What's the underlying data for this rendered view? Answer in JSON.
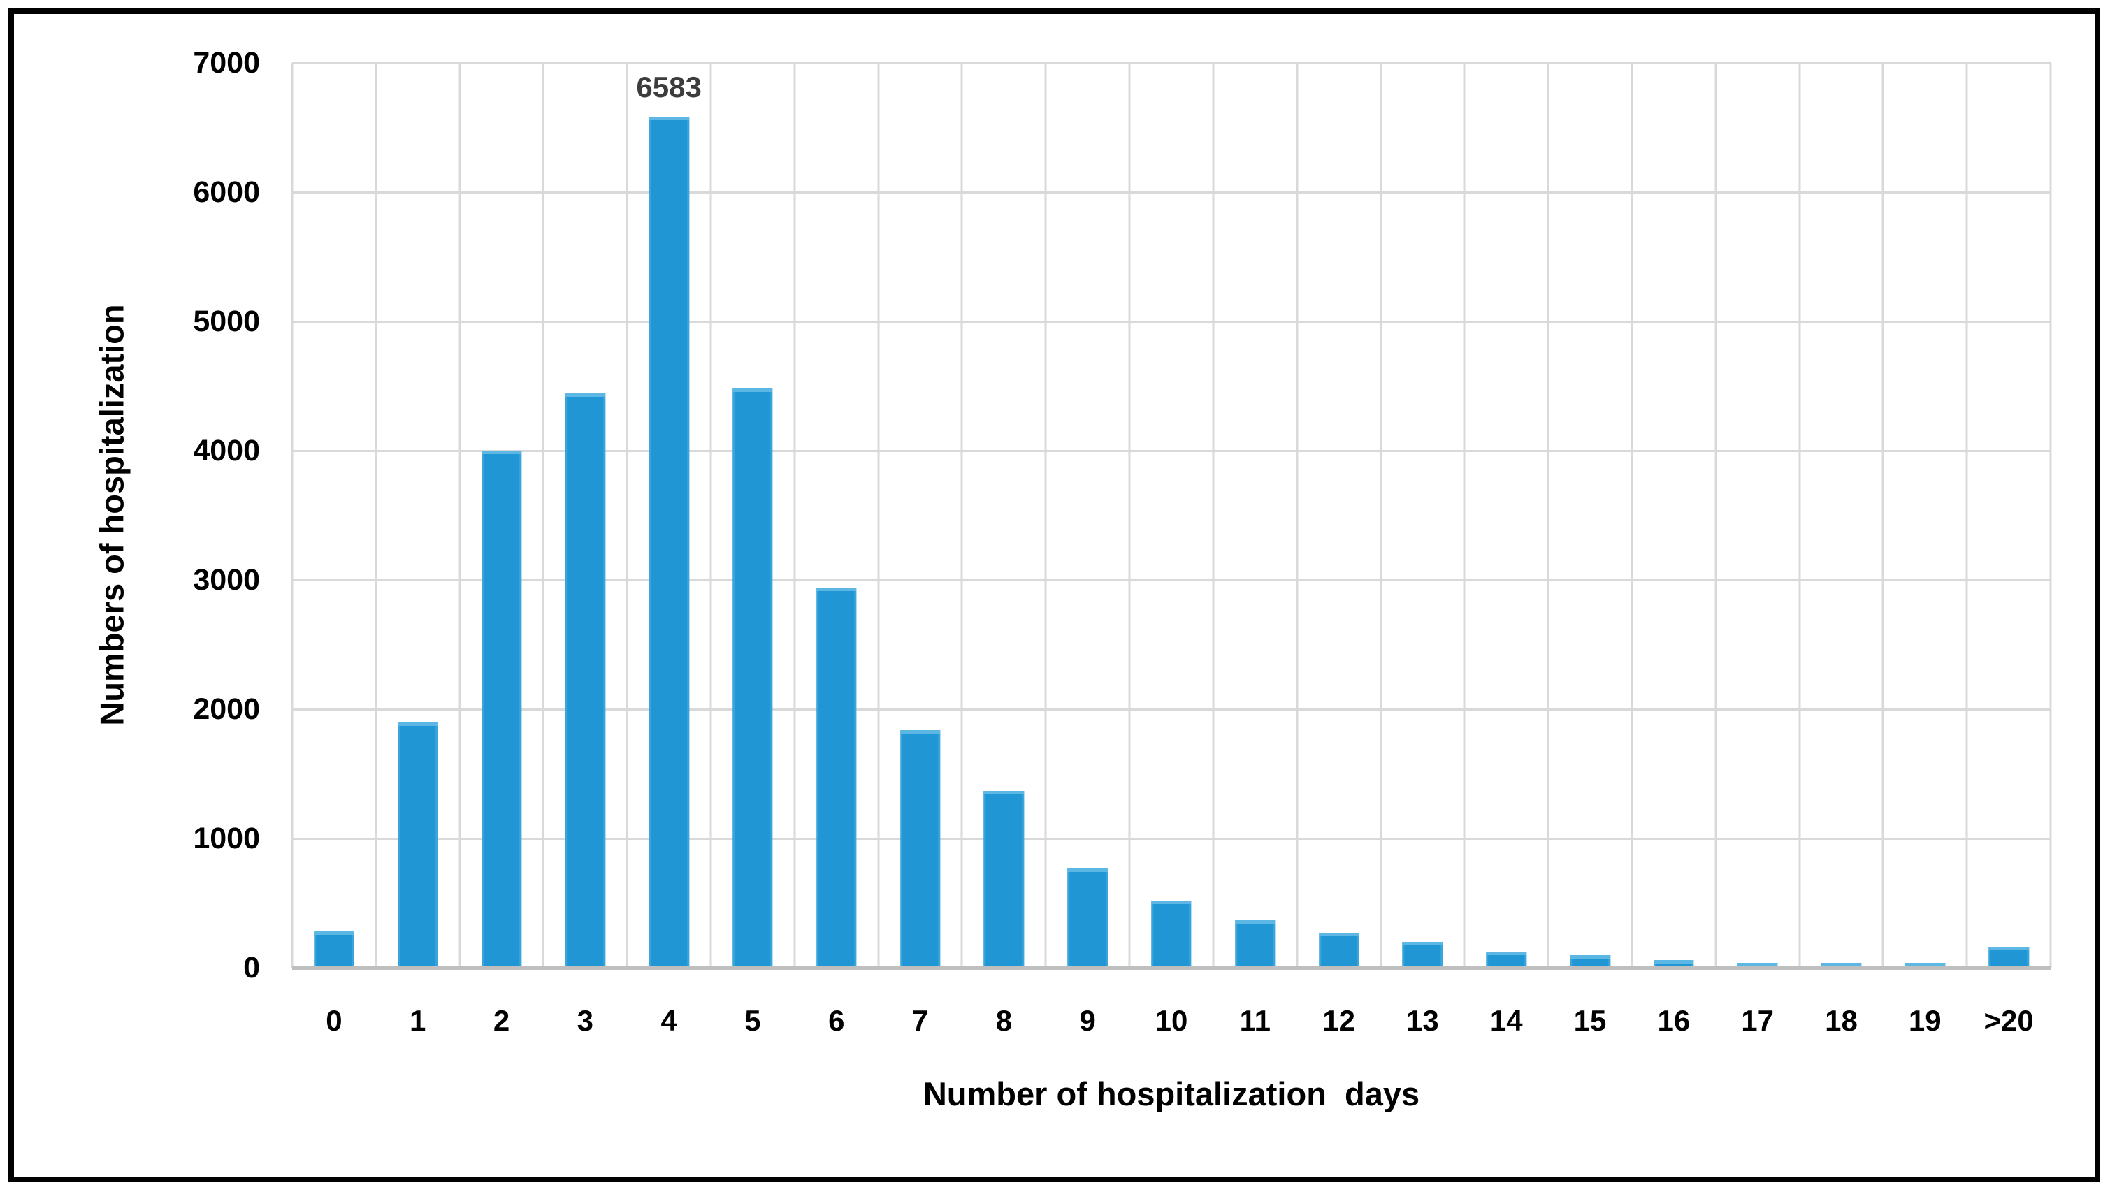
{
  "figure": {
    "y_axis_title": "Numbers of hospitalization",
    "x_axis_title": "Number of hospitalization  days",
    "y_ticks": [
      "7000",
      "6000",
      "5000",
      "4000",
      "3000",
      "2000",
      "1000",
      "0"
    ],
    "data_label": "6583",
    "colors": {
      "bar": "#2097D4",
      "bar_cap": "#5CB7E4",
      "gridline": "#D9D9D9",
      "axis_line": "#BFBFBF",
      "data_label_color": "#3C3C3C",
      "border": "#000000",
      "background": "#FFFFFF"
    }
  },
  "chart_data": {
    "type": "bar",
    "title": "",
    "xlabel": "Number of hospitalization  days",
    "ylabel": "Numbers of hospitalization",
    "categories": [
      "0",
      "1",
      "2",
      "3",
      "4",
      "5",
      "6",
      "7",
      "8",
      "9",
      "10",
      "11",
      "12",
      "13",
      "14",
      "15",
      "16",
      "17",
      "18",
      "19",
      ">20"
    ],
    "values": [
      280,
      1900,
      4000,
      4445,
      6583,
      4480,
      2940,
      1840,
      1365,
      765,
      520,
      370,
      270,
      200,
      125,
      95,
      60,
      40,
      40,
      40,
      160
    ],
    "ylim": [
      0,
      7000
    ],
    "ytick_interval": 1000,
    "grid": true,
    "legend": false,
    "annotations": [
      {
        "category_index": 4,
        "text": "6583"
      }
    ]
  }
}
